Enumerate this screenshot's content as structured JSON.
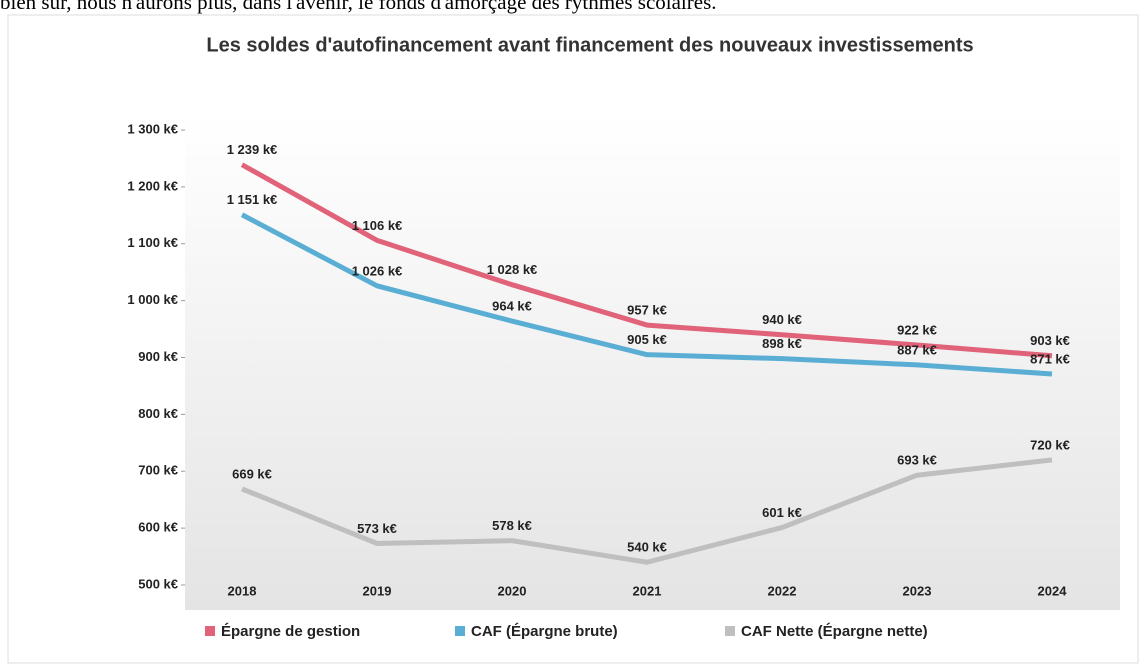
{
  "text": "bien sûr, nous n'aurons plus, dans l'avenir, le fonds d'amorçage des rythmes scolaires.",
  "chart_data": {
    "type": "line",
    "title": "Les soldes d'autofinancement avant financement des nouveaux investissements",
    "categories": [
      "2018",
      "2019",
      "2020",
      "2021",
      "2022",
      "2023",
      "2024"
    ],
    "series": [
      {
        "name": "Épargne de gestion",
        "color": "#e0637a",
        "values": [
          1239,
          1106,
          1028,
          957,
          940,
          922,
          903
        ],
        "value_labels": [
          "1 239 k€",
          "1 106 k€",
          "1 028 k€",
          "957 k€",
          "940 k€",
          "922 k€",
          "903 k€"
        ]
      },
      {
        "name": "CAF (Épargne brute)",
        "color": "#5aaed4",
        "values": [
          1151,
          1026,
          964,
          905,
          898,
          887,
          871
        ],
        "value_labels": [
          "1 151 k€",
          "1 026 k€",
          "964 k€",
          "905 k€",
          "898 k€",
          "887 k€",
          "871 k€"
        ]
      },
      {
        "name": "CAF Nette (Épargne nette)",
        "color": "#bfbfbf",
        "values": [
          669,
          573,
          578,
          540,
          601,
          693,
          720
        ],
        "value_labels": [
          "669 k€",
          "573 k€",
          "578 k€",
          "540 k€",
          "601 k€",
          "693 k€",
          "720 k€"
        ]
      }
    ],
    "ylim": [
      500,
      1300
    ],
    "yticks": [
      {
        "value": 500,
        "label": "500 k€"
      },
      {
        "value": 600,
        "label": "600 k€"
      },
      {
        "value": 700,
        "label": "700 k€"
      },
      {
        "value": 800,
        "label": "800 k€"
      },
      {
        "value": 900,
        "label": "900 k€"
      },
      {
        "value": 1000,
        "label": "1 000 k€"
      },
      {
        "value": 1100,
        "label": "1 100 k€"
      },
      {
        "value": 1200,
        "label": "1 200 k€"
      },
      {
        "value": 1300,
        "label": "1 300 k€"
      }
    ],
    "grid": false,
    "legend": "bottom"
  }
}
